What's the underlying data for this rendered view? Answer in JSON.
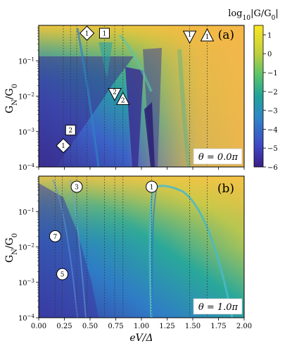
{
  "chart_data": [
    {
      "type": "heatmap",
      "panel_label": "(a)",
      "theta_label": "θ = 0.0π",
      "ylabel": "G_N/G_0",
      "xlabel": "",
      "xlim": [
        0,
        2
      ],
      "ylim": [
        0.0001,
        1
      ],
      "y_scale": "log",
      "y_ticks": [
        "10^-4",
        "10^-3",
        "10^-2",
        "10^-1"
      ],
      "x_ticks": [],
      "vertical_reference_lines": [
        0.24,
        0.31,
        0.37,
        0.47,
        0.64,
        0.74,
        0.82,
        1.47,
        1.64
      ],
      "markers": [
        {
          "shape": "diamond",
          "label": "1",
          "x": 0.47,
          "y": 0.6
        },
        {
          "shape": "diamond",
          "label": "1",
          "x": 0.24,
          "y": 0.0004
        },
        {
          "shape": "square",
          "label": "1",
          "x": 0.64,
          "y": 0.6
        },
        {
          "shape": "square",
          "label": "2",
          "x": 0.31,
          "y": 0.0011
        },
        {
          "shape": "triangle-down",
          "label": "2",
          "x": 0.74,
          "y": 0.012
        },
        {
          "shape": "triangle-up",
          "label": "2",
          "x": 0.82,
          "y": 0.008
        },
        {
          "shape": "triangle-down",
          "label": "1",
          "x": 1.47,
          "y": 0.5
        },
        {
          "shape": "triangle-up",
          "label": "1",
          "x": 1.64,
          "y": 0.5
        }
      ]
    },
    {
      "type": "heatmap",
      "panel_label": "(b)",
      "theta_label": "θ = 1.0π",
      "ylabel": "G_N/G_0",
      "xlabel": "eV/Δ",
      "xlim": [
        0,
        2
      ],
      "ylim": [
        0.0001,
        1
      ],
      "y_scale": "log",
      "y_ticks": [
        "10^-4",
        "10^-3",
        "10^-2",
        "10^-1"
      ],
      "x_ticks": [
        "0.00",
        "0.25",
        "0.50",
        "0.75",
        "1.00",
        "1.25",
        "1.50",
        "1.75",
        "2.00"
      ],
      "vertical_reference_lines": [
        0.16,
        0.23,
        0.37,
        0.47,
        0.64,
        0.74,
        0.82,
        1.1,
        1.47,
        1.64
      ],
      "markers": [
        {
          "shape": "circle",
          "label": "3",
          "x": 0.37,
          "y": 0.5
        },
        {
          "shape": "circle",
          "label": "1",
          "x": 1.1,
          "y": 0.5
        },
        {
          "shape": "circle",
          "label": "7",
          "x": 0.16,
          "y": 0.02
        },
        {
          "shape": "circle",
          "label": "5",
          "x": 0.23,
          "y": 0.0017
        }
      ]
    }
  ],
  "colorbar": {
    "label": "log10|G/G0|",
    "min": -6,
    "max": 1.5,
    "ticks": [
      "1",
      "0",
      "−1",
      "−2",
      "−3",
      "−4",
      "−5",
      "−6"
    ],
    "colormap": "viridis-like (blue → teal → green → yellow)"
  },
  "colors": {
    "low": "#3b2f93",
    "mid": "#21a39a",
    "high": "#fbe723",
    "guide_line": "#333333"
  }
}
